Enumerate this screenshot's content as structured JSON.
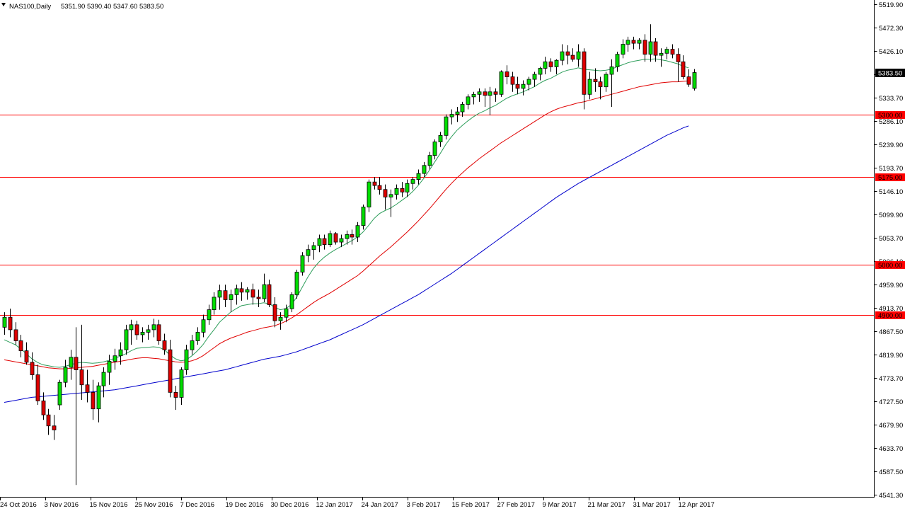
{
  "header": {
    "symbol": "NAS100,Daily",
    "ohlc": "5351.90 5390.40 5347.60 5383.50"
  },
  "colors": {
    "bull": "#00dd00",
    "bear": "#dd0000",
    "wick": "#000000",
    "ma_short": "#2e9e5b",
    "ma_mid": "#e00000",
    "ma_long": "#0000cc",
    "level_line": "#ff0000",
    "level_label_bg": "#ff0000",
    "price_label_bg": "#000000"
  },
  "chart_data": {
    "type": "candlestick",
    "y_axis": {
      "min": 4541.3,
      "max": 5519.9,
      "ticks": [
        "5519.90",
        "5472.30",
        "5426.10",
        "5379.90",
        "5333.70",
        "5286.10",
        "5239.90",
        "5193.70",
        "5146.10",
        "5099.90",
        "5053.70",
        "5006.10",
        "4959.90",
        "4913.70",
        "4867.50",
        "4819.90",
        "4773.70",
        "4727.50",
        "4679.90",
        "4633.70",
        "4587.50",
        "4541.30"
      ]
    },
    "x_labels": [
      "24 Oct 2016",
      "3 Nov 2016",
      "15 Nov 2016",
      "25 Nov 2016",
      "7 Dec 2016",
      "19 Dec 2016",
      "30 Dec 2016",
      "12 Jan 2017",
      "24 Jan 2017",
      "3 Feb 2017",
      "15 Feb 2017",
      "27 Feb 2017",
      "9 Mar 2017",
      "21 Mar 2017",
      "31 Mar 2017",
      "12 Apr 2017"
    ],
    "current_price": "5383.50",
    "levels": [
      {
        "value": 5300,
        "label": "5300.00"
      },
      {
        "value": 5175,
        "label": "5175.00"
      },
      {
        "value": 5000,
        "label": "5000.00"
      },
      {
        "value": 4900,
        "label": "4900.00"
      }
    ],
    "candles": [
      [
        4875,
        4905,
        4860,
        4895
      ],
      [
        4895,
        4912,
        4855,
        4870
      ],
      [
        4870,
        4885,
        4840,
        4848
      ],
      [
        4848,
        4860,
        4815,
        4828
      ],
      [
        4828,
        4845,
        4800,
        4805
      ],
      [
        4805,
        4825,
        4770,
        4780
      ],
      [
        4780,
        4800,
        4720,
        4728
      ],
      [
        4728,
        4745,
        4690,
        4700
      ],
      [
        4700,
        4712,
        4660,
        4678
      ],
      [
        4678,
        4700,
        4650,
        4670
      ],
      [
        4720,
        4770,
        4710,
        4765
      ],
      [
        4765,
        4810,
        4755,
        4795
      ],
      [
        4795,
        4830,
        4770,
        4815
      ],
      [
        4815,
        4875,
        4560,
        4790
      ],
      [
        4790,
        4880,
        4730,
        4760
      ],
      [
        4760,
        4790,
        4725,
        4745
      ],
      [
        4745,
        4770,
        4690,
        4712
      ],
      [
        4712,
        4765,
        4685,
        4758
      ],
      [
        4758,
        4795,
        4735,
        4785
      ],
      [
        4785,
        4820,
        4760,
        4807
      ],
      [
        4807,
        4832,
        4790,
        4818
      ],
      [
        4818,
        4845,
        4800,
        4830
      ],
      [
        4830,
        4880,
        4820,
        4870
      ],
      [
        4870,
        4890,
        4840,
        4880
      ],
      [
        4880,
        4888,
        4850,
        4860
      ],
      [
        4860,
        4875,
        4845,
        4865
      ],
      [
        4865,
        4880,
        4850,
        4870
      ],
      [
        4870,
        4892,
        4855,
        4880
      ],
      [
        4880,
        4890,
        4840,
        4848
      ],
      [
        4848,
        4862,
        4820,
        4830
      ],
      [
        4830,
        4850,
        4735,
        4745
      ],
      [
        4745,
        4758,
        4710,
        4735
      ],
      [
        4735,
        4795,
        4720,
        4790
      ],
      [
        4790,
        4840,
        4780,
        4830
      ],
      [
        4830,
        4860,
        4820,
        4848
      ],
      [
        4848,
        4875,
        4840,
        4865
      ],
      [
        4865,
        4900,
        4855,
        4890
      ],
      [
        4890,
        4920,
        4880,
        4910
      ],
      [
        4910,
        4945,
        4900,
        4935
      ],
      [
        4935,
        4960,
        4910,
        4948
      ],
      [
        4948,
        4960,
        4915,
        4930
      ],
      [
        4930,
        4950,
        4905,
        4940
      ],
      [
        4940,
        4960,
        4920,
        4952
      ],
      [
        4952,
        4965,
        4928,
        4945
      ],
      [
        4945,
        4955,
        4930,
        4950
      ],
      [
        4950,
        4962,
        4920,
        4935
      ],
      [
        4935,
        4950,
        4915,
        4932
      ],
      [
        4932,
        4982,
        4925,
        4960
      ],
      [
        4960,
        4970,
        4915,
        4920
      ],
      [
        4920,
        4935,
        4875,
        4888
      ],
      [
        4888,
        4905,
        4870,
        4895
      ],
      [
        4895,
        4920,
        4885,
        4912
      ],
      [
        4912,
        4945,
        4905,
        4940
      ],
      [
        4940,
        4990,
        4932,
        4985
      ],
      [
        4985,
        5025,
        4978,
        5018
      ],
      [
        5018,
        5040,
        5005,
        5030
      ],
      [
        5030,
        5045,
        5010,
        5038
      ],
      [
        5038,
        5060,
        5025,
        5052
      ],
      [
        5052,
        5060,
        5030,
        5040
      ],
      [
        5040,
        5068,
        5035,
        5062
      ],
      [
        5062,
        5065,
        5040,
        5045
      ],
      [
        5045,
        5060,
        5035,
        5052
      ],
      [
        5052,
        5068,
        5040,
        5060
      ],
      [
        5060,
        5070,
        5040,
        5055
      ],
      [
        5055,
        5085,
        5045,
        5078
      ],
      [
        5078,
        5120,
        5070,
        5115
      ],
      [
        5115,
        5170,
        5105,
        5165
      ],
      [
        5165,
        5175,
        5150,
        5158
      ],
      [
        5158,
        5175,
        5140,
        5150
      ],
      [
        5150,
        5160,
        5110,
        5135
      ],
      [
        5135,
        5150,
        5095,
        5140
      ],
      [
        5140,
        5160,
        5130,
        5152
      ],
      [
        5152,
        5165,
        5135,
        5145
      ],
      [
        5145,
        5170,
        5135,
        5162
      ],
      [
        5162,
        5175,
        5150,
        5170
      ],
      [
        5170,
        5190,
        5160,
        5182
      ],
      [
        5182,
        5205,
        5175,
        5198
      ],
      [
        5198,
        5225,
        5190,
        5218
      ],
      [
        5218,
        5250,
        5210,
        5245
      ],
      [
        5245,
        5265,
        5235,
        5258
      ],
      [
        5258,
        5300,
        5250,
        5295
      ],
      [
        5295,
        5310,
        5280,
        5300
      ],
      [
        5300,
        5315,
        5285,
        5305
      ],
      [
        5305,
        5325,
        5295,
        5320
      ],
      [
        5320,
        5340,
        5310,
        5335
      ],
      [
        5335,
        5345,
        5320,
        5340
      ],
      [
        5340,
        5352,
        5325,
        5345
      ],
      [
        5345,
        5352,
        5315,
        5338
      ],
      [
        5338,
        5355,
        5298,
        5345
      ],
      [
        5345,
        5352,
        5325,
        5340
      ],
      [
        5340,
        5388,
        5335,
        5385
      ],
      [
        5385,
        5398,
        5360,
        5375
      ],
      [
        5375,
        5385,
        5345,
        5360
      ],
      [
        5360,
        5375,
        5340,
        5352
      ],
      [
        5352,
        5368,
        5338,
        5360
      ],
      [
        5360,
        5375,
        5348,
        5370
      ],
      [
        5370,
        5385,
        5355,
        5380
      ],
      [
        5380,
        5395,
        5368,
        5392
      ],
      [
        5392,
        5415,
        5380,
        5405
      ],
      [
        5405,
        5412,
        5385,
        5395
      ],
      [
        5395,
        5410,
        5380,
        5408
      ],
      [
        5408,
        5440,
        5398,
        5425
      ],
      [
        5425,
        5438,
        5400,
        5418
      ],
      [
        5418,
        5432,
        5405,
        5410
      ],
      [
        5410,
        5440,
        5395,
        5425
      ],
      [
        5425,
        5432,
        5310,
        5340
      ],
      [
        5340,
        5385,
        5330,
        5370
      ],
      [
        5370,
        5392,
        5345,
        5365
      ],
      [
        5365,
        5375,
        5330,
        5355
      ],
      [
        5355,
        5385,
        5345,
        5380
      ],
      [
        5380,
        5410,
        5315,
        5395
      ],
      [
        5395,
        5425,
        5385,
        5420
      ],
      [
        5420,
        5450,
        5412,
        5440
      ],
      [
        5440,
        5455,
        5425,
        5448
      ],
      [
        5448,
        5455,
        5430,
        5442
      ],
      [
        5442,
        5452,
        5430,
        5448
      ],
      [
        5448,
        5460,
        5405,
        5420
      ],
      [
        5420,
        5480,
        5405,
        5445
      ],
      [
        5445,
        5452,
        5405,
        5418
      ],
      [
        5418,
        5432,
        5395,
        5422
      ],
      [
        5422,
        5435,
        5410,
        5430
      ],
      [
        5430,
        5440,
        5412,
        5420
      ],
      [
        5420,
        5432,
        5365,
        5405
      ],
      [
        5405,
        5418,
        5370,
        5375
      ],
      [
        5375,
        5390,
        5355,
        5360
      ],
      [
        5351.9,
        5390.4,
        5347.6,
        5383.5
      ]
    ],
    "series": [
      {
        "period": "short",
        "values": [
          4850,
          4845,
          4840,
          4832,
          4822,
          4812,
          4805,
          4800,
          4798,
          4796,
          4795,
          4797,
          4800,
          4803,
          4805,
          4804,
          4803,
          4804,
          4806,
          4809,
          4813,
          4817,
          4822,
          4828,
          4833,
          4834,
          4835,
          4836,
          4835,
          4830,
          4820,
          4812,
          4808,
          4810,
          4818,
          4828,
          4840,
          4856,
          4870,
          4885,
          4895,
          4905,
          4912,
          4918,
          4920,
          4922,
          4922,
          4924,
          4922,
          4915,
          4910,
          4912,
          4920,
          4935,
          4955,
          4975,
          4992,
          5005,
          5015,
          5023,
          5030,
          5036,
          5042,
          5048,
          5055,
          5065,
          5078,
          5092,
          5102,
          5108,
          5113,
          5120,
          5128,
          5136,
          5146,
          5158,
          5172,
          5188,
          5205,
          5222,
          5240,
          5255,
          5268,
          5278,
          5287,
          5295,
          5302,
          5307,
          5313,
          5318,
          5325,
          5332,
          5337,
          5341,
          5345,
          5350,
          5355,
          5362,
          5368,
          5372,
          5378,
          5384,
          5388,
          5390,
          5393,
          5390,
          5389,
          5388,
          5387,
          5388,
          5390,
          5395,
          5399,
          5403,
          5406,
          5408,
          5410,
          5410,
          5411,
          5409,
          5407,
          5404,
          5401,
          5396,
          5393
        ]
      },
      {
        "period": "mid",
        "values": [
          4810,
          4808,
          4806,
          4804,
          4802,
          4800,
          4798,
          4796,
          4794,
          4793,
          4792,
          4792,
          4793,
          4794,
          4795,
          4796,
          4797,
          4799,
          4801,
          4803,
          4805,
          4807,
          4809,
          4811,
          4813,
          4814,
          4814,
          4813,
          4812,
          4810,
          4808,
          4806,
          4805,
          4806,
          4808,
          4812,
          4818,
          4826,
          4834,
          4842,
          4848,
          4853,
          4857,
          4861,
          4865,
          4868,
          4871,
          4874,
          4876,
          4878,
          4882,
          4887,
          4893,
          4900,
          4908,
          4916,
          4924,
          4931,
          4937,
          4943,
          4950,
          4957,
          4964,
          4971,
          4978,
          4987,
          4997,
          5007,
          5017,
          5026,
          5035,
          5045,
          5055,
          5065,
          5076,
          5087,
          5099,
          5111,
          5124,
          5137,
          5150,
          5162,
          5173,
          5183,
          5193,
          5202,
          5211,
          5219,
          5227,
          5235,
          5243,
          5250,
          5257,
          5264,
          5271,
          5278,
          5285,
          5292,
          5299,
          5305,
          5310,
          5314,
          5317,
          5320,
          5323,
          5325,
          5328,
          5331,
          5334,
          5337,
          5340,
          5343,
          5346,
          5349,
          5352,
          5355,
          5357,
          5359,
          5361,
          5363,
          5364,
          5365,
          5365,
          5366,
          5367
        ]
      },
      {
        "period": "long",
        "values": [
          4725,
          4727,
          4729,
          4731,
          4733,
          4735,
          4736,
          4737,
          4738,
          4739,
          4740,
          4741,
          4742,
          4743,
          4744,
          4745,
          4746,
          4747,
          4748,
          4749,
          4750,
          4752,
          4754,
          4756,
          4758,
          4760,
          4762,
          4764,
          4766,
          4768,
          4770,
          4772,
          4774,
          4776,
          4778,
          4780,
          4782,
          4784,
          4786,
          4788,
          4790,
          4793,
          4796,
          4799,
          4802,
          4805,
          4808,
          4811,
          4813,
          4815,
          4817,
          4820,
          4823,
          4826,
          4830,
          4834,
          4838,
          4842,
          4846,
          4850,
          4855,
          4860,
          4865,
          4870,
          4875,
          4880,
          4886,
          4892,
          4898,
          4904,
          4910,
          4916,
          4922,
          4928,
          4934,
          4940,
          4947,
          4954,
          4961,
          4968,
          4975,
          4982,
          4990,
          4998,
          5006,
          5014,
          5022,
          5030,
          5038,
          5046,
          5054,
          5062,
          5070,
          5078,
          5086,
          5094,
          5102,
          5110,
          5118,
          5126,
          5134,
          5141,
          5148,
          5155,
          5162,
          5168,
          5174,
          5180,
          5186,
          5192,
          5198,
          5204,
          5210,
          5216,
          5222,
          5228,
          5234,
          5240,
          5246,
          5252,
          5258,
          5263,
          5268,
          5273,
          5277
        ]
      }
    ]
  }
}
